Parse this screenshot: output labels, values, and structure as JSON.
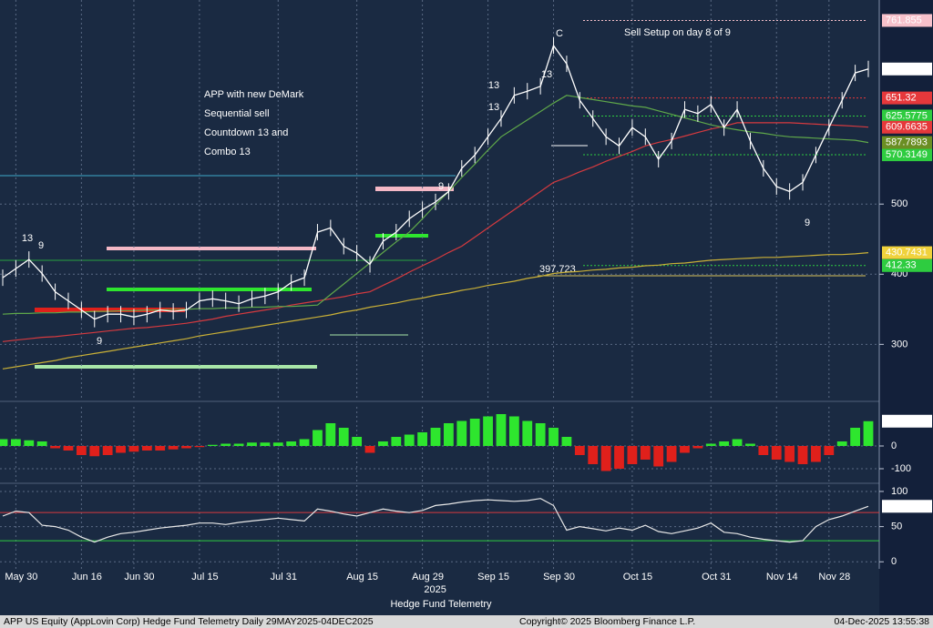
{
  "chart_data": [
    {
      "type": "price",
      "note_lines": [
        "APP with new DeMark",
        "Sequential sell",
        "Countdown 13 and",
        "Combo 13"
      ],
      "callout": "Sell Setup on day 8 of 9",
      "ylim": [
        220,
        791
      ],
      "yticks": [
        300,
        400,
        500
      ],
      "grid": true,
      "series": [
        {
          "color": "#ffffff",
          "box_color": "#ffffff",
          "box_text_color": "#000000",
          "values": [
            395,
            408,
            421,
            401,
            375,
            362,
            349,
            336,
            343,
            343,
            339,
            343,
            349,
            347,
            349,
            362,
            365,
            362,
            358,
            365,
            369,
            375,
            388,
            395,
            460,
            466,
            440,
            430,
            414,
            447,
            460,
            479,
            492,
            503,
            518,
            551,
            570,
            596,
            622,
            655,
            661,
            668,
            726,
            700,
            648,
            622,
            596,
            583,
            609,
            596,
            564,
            590,
            635,
            629,
            642,
            609,
            635,
            590,
            551,
            525,
            518,
            531,
            570,
            609,
            648,
            687,
            692.6655
          ]
        },
        {
          "color": "#5fa84a",
          "box_color": "#6b8e23",
          "box_text_color": "#ffffff",
          "values": [
            343,
            344,
            344,
            345,
            345,
            346,
            346,
            347,
            347,
            348,
            348,
            349,
            349,
            350,
            350,
            351,
            351,
            352,
            352,
            353,
            353,
            354,
            354,
            355,
            356,
            371,
            386,
            401,
            416,
            431,
            446,
            460,
            479,
            499,
            518,
            538,
            557,
            577,
            596,
            608,
            620,
            632,
            644,
            655,
            652,
            649,
            646,
            643,
            640,
            638,
            633,
            628,
            623,
            618,
            613,
            609,
            606,
            603,
            601,
            598,
            596,
            595,
            594,
            593,
            592,
            591,
            587.7893
          ]
        },
        {
          "color": "#d63a3f",
          "box_color": "#e5383b",
          "box_text_color": "#ffffff",
          "values": [
            304,
            306,
            308,
            310,
            311,
            313,
            315,
            317,
            319,
            321,
            323,
            324,
            326,
            328,
            330,
            333,
            336,
            340,
            343,
            346,
            349,
            352,
            356,
            359,
            362,
            365,
            368,
            372,
            375,
            384,
            393,
            403,
            412,
            421,
            431,
            440,
            453,
            466,
            479,
            492,
            505,
            518,
            531,
            538,
            546,
            553,
            561,
            568,
            575,
            583,
            588,
            592,
            597,
            602,
            607,
            611,
            616,
            616,
            616,
            616,
            616,
            615,
            614,
            613,
            612,
            611,
            609.6635
          ]
        },
        {
          "color": "#c9b037",
          "box_color": "#f0d23c",
          "box_text_color": "#000000",
          "values": [
            265,
            268,
            271,
            274,
            277,
            281,
            284,
            287,
            290,
            293,
            296,
            299,
            302,
            305,
            308,
            312,
            315,
            318,
            321,
            324,
            327,
            330,
            333,
            336,
            339,
            342,
            346,
            349,
            353,
            356,
            359,
            363,
            366,
            370,
            373,
            377,
            380,
            384,
            387,
            390,
            394,
            397,
            401,
            403,
            404,
            406,
            407,
            409,
            410,
            412,
            413,
            415,
            416,
            418,
            420,
            421,
            422,
            423,
            424,
            424,
            425,
            426,
            427,
            428,
            428,
            429,
            430.7431
          ]
        }
      ],
      "levels": [
        {
          "value": 761.855,
          "color": "#f7c1cb",
          "box": true
        },
        {
          "value": 651.32,
          "color": "#e5383b",
          "box": true
        },
        {
          "value": 625.5775,
          "color": "#2ecc40",
          "box": true
        },
        {
          "value": 570.3149,
          "color": "#2ecc40",
          "box": true
        },
        {
          "value": 412.33,
          "color": "#2ecc40",
          "box": true
        },
        {
          "value": 397.723,
          "color": "#d8c25a",
          "box": false
        }
      ],
      "demark_labels": [
        {
          "label": "13",
          "color": "#d24dd8"
        },
        {
          "label": "9",
          "color": "#2ee62e"
        },
        {
          "label": "13",
          "color": "#d24dd8"
        },
        {
          "label": "13",
          "color": "#d24dd8"
        },
        {
          "label": "13",
          "color": "#e5383b"
        },
        {
          "label": "9",
          "color": "#2ee62e"
        },
        {
          "label": "9",
          "color": "#2ee62e"
        },
        {
          "label": "9",
          "color": "#2ee62e"
        },
        {
          "label": "C",
          "color": "#f0d23c"
        }
      ]
    },
    {
      "type": "histogram",
      "ylim": [
        -160,
        172
      ],
      "yticks": [
        0,
        -100
      ],
      "up_color": "#2ee62e",
      "down_color": "#e0201b",
      "values": [
        30,
        30,
        25,
        20,
        -10,
        -20,
        -40,
        -45,
        -40,
        -30,
        -25,
        -20,
        -20,
        -15,
        -10,
        -5,
        5,
        10,
        10,
        15,
        15,
        15,
        20,
        30,
        70,
        100,
        80,
        40,
        -30,
        20,
        40,
        50,
        60,
        80,
        100,
        110,
        120,
        130,
        140,
        130,
        110,
        100,
        80,
        40,
        -40,
        -80,
        -110,
        -100,
        -80,
        -60,
        -90,
        -70,
        -30,
        -10,
        10,
        20,
        30,
        10,
        -40,
        -60,
        -70,
        -80,
        -70,
        -40,
        20,
        80,
        108.9195
      ]
    },
    {
      "type": "oscillator",
      "ylim": [
        -10,
        109
      ],
      "yticks": [
        0,
        50,
        100
      ],
      "color": "#e8e8e8",
      "levels": [
        {
          "value": 70,
          "color": "#d63a3f"
        },
        {
          "value": 30,
          "color": "#2ecc40"
        }
      ],
      "values": [
        65,
        72,
        70,
        52,
        50,
        45,
        35,
        28,
        35,
        40,
        42,
        45,
        48,
        50,
        52,
        55,
        55,
        53,
        56,
        58,
        60,
        62,
        60,
        58,
        75,
        72,
        68,
        65,
        70,
        75,
        72,
        70,
        73,
        80,
        82,
        85,
        87,
        88,
        87,
        86,
        87,
        90,
        80,
        45,
        50,
        47,
        44,
        48,
        45,
        52,
        43,
        40,
        44,
        48,
        55,
        42,
        40,
        35,
        32,
        30,
        28,
        30,
        50,
        60,
        65,
        72,
        78.8705
      ],
      "categories": [
        null,
        "May 30",
        null,
        null,
        null,
        null,
        "Jun 16",
        null,
        null,
        null,
        "Jun 30",
        null,
        null,
        null,
        null,
        "Jul 15",
        null,
        null,
        null,
        null,
        null,
        "Jul 31",
        null,
        null,
        null,
        null,
        null,
        "Aug 15",
        null,
        null,
        null,
        null,
        "Aug 29",
        null,
        null,
        null,
        null,
        "Sep 15",
        null,
        null,
        null,
        null,
        "Sep 30",
        null,
        null,
        null,
        null,
        null,
        "Oct 15",
        null,
        null,
        null,
        null,
        null,
        "Oct 31",
        null,
        null,
        null,
        null,
        "Nov 14",
        null,
        null,
        null,
        "Nov 28",
        null,
        null,
        null
      ],
      "year_label": "2025",
      "x_title": "Hedge Fund Telemetry"
    }
  ],
  "footer": {
    "left": "APP US Equity (AppLovin Corp) Hedge Fund Telemetry Daily 29MAY2025-04DEC2025",
    "center": "Copyright© 2025 Bloomberg Finance L.P.",
    "right": "04-Dec-2025 13:55:38"
  }
}
